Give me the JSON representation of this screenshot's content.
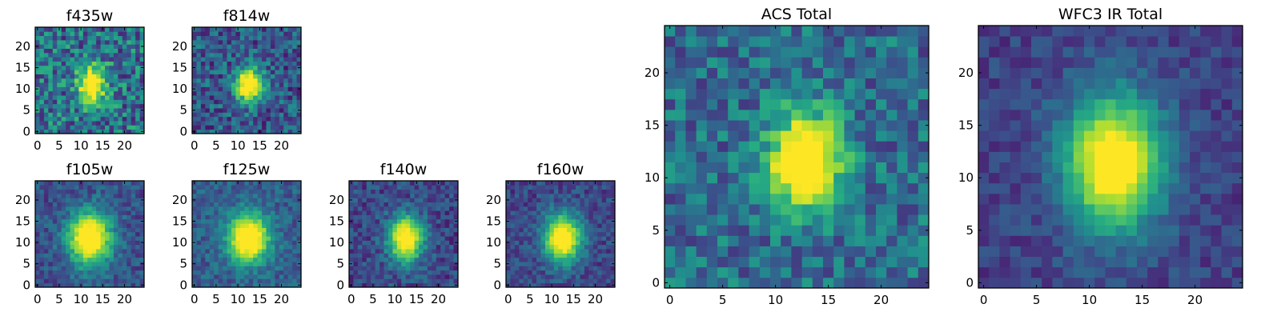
{
  "figure": {
    "type": "image-grid",
    "colormap": "viridis"
  },
  "chart_data": [
    {
      "type": "heatmap",
      "title": "f435w",
      "x_ticks": [
        "0",
        "5",
        "10",
        "15",
        "20"
      ],
      "y_ticks": [
        "0",
        "5",
        "10",
        "15",
        "20"
      ],
      "xlim": [
        0,
        24
      ],
      "ylim": [
        0,
        24
      ],
      "grid_size": 25,
      "source_center": [
        12.5,
        11.0
      ],
      "source_width": [
        2.2,
        3.0
      ],
      "peak": 0.85,
      "background": 0.38,
      "noise": 0.28
    },
    {
      "type": "heatmap",
      "title": "f814w",
      "x_ticks": [
        "0",
        "5",
        "10",
        "15",
        "20"
      ],
      "y_ticks": [
        "0",
        "5",
        "10",
        "15",
        "20"
      ],
      "xlim": [
        0,
        24
      ],
      "ylim": [
        0,
        24
      ],
      "grid_size": 25,
      "source_center": [
        12.5,
        11.0
      ],
      "source_width": [
        2.3,
        2.8
      ],
      "peak": 0.9,
      "background": 0.28,
      "noise": 0.22
    },
    {
      "type": "heatmap",
      "title": "f105w",
      "x_ticks": [
        "0",
        "5",
        "10",
        "15",
        "20"
      ],
      "y_ticks": [
        "0",
        "5",
        "10",
        "15",
        "20"
      ],
      "xlim": [
        0,
        24
      ],
      "ylim": [
        0,
        24
      ],
      "grid_size": 25,
      "source_center": [
        12.0,
        11.0
      ],
      "source_width": [
        3.5,
        4.5
      ],
      "peak": 0.95,
      "background": 0.25,
      "noise": 0.14
    },
    {
      "type": "heatmap",
      "title": "f125w",
      "x_ticks": [
        "0",
        "5",
        "10",
        "15",
        "20"
      ],
      "y_ticks": [
        "0",
        "5",
        "10",
        "15",
        "20"
      ],
      "xlim": [
        0,
        24
      ],
      "ylim": [
        0,
        24
      ],
      "grid_size": 25,
      "source_center": [
        12.5,
        11.0
      ],
      "source_width": [
        3.3,
        4.0
      ],
      "peak": 0.95,
      "background": 0.3,
      "noise": 0.13
    },
    {
      "type": "heatmap",
      "title": "f140w",
      "x_ticks": [
        "0",
        "5",
        "10",
        "15",
        "20"
      ],
      "y_ticks": [
        "0",
        "5",
        "10",
        "15",
        "20"
      ],
      "xlim": [
        0,
        24
      ],
      "ylim": [
        0,
        24
      ],
      "grid_size": 25,
      "source_center": [
        12.5,
        11.0
      ],
      "source_width": [
        2.8,
        3.8
      ],
      "peak": 0.95,
      "background": 0.22,
      "noise": 0.15
    },
    {
      "type": "heatmap",
      "title": "f160w",
      "x_ticks": [
        "0",
        "5",
        "10",
        "15",
        "20"
      ],
      "y_ticks": [
        "0",
        "5",
        "10",
        "15",
        "20"
      ],
      "xlim": [
        0,
        24
      ],
      "ylim": [
        0,
        24
      ],
      "grid_size": 25,
      "source_center": [
        12.5,
        11.0
      ],
      "source_width": [
        3.0,
        4.0
      ],
      "peak": 0.95,
      "background": 0.22,
      "noise": 0.13
    },
    {
      "type": "heatmap",
      "title": "ACS Total",
      "x_ticks": [
        "0",
        "5",
        "10",
        "15",
        "20"
      ],
      "y_ticks": [
        "0",
        "5",
        "10",
        "15",
        "20"
      ],
      "xlim": [
        0,
        24
      ],
      "ylim": [
        0,
        24
      ],
      "grid_size": 25,
      "source_center": [
        12.8,
        11.5
      ],
      "source_width": [
        2.4,
        3.2
      ],
      "peak": 0.95,
      "background": 0.36,
      "noise": 0.2
    },
    {
      "type": "heatmap",
      "title": "WFC3 IR Total",
      "x_ticks": [
        "0",
        "5",
        "10",
        "15",
        "20"
      ],
      "y_ticks": [
        "0",
        "5",
        "10",
        "15",
        "20"
      ],
      "xlim": [
        0,
        24
      ],
      "ylim": [
        0,
        24
      ],
      "grid_size": 25,
      "source_center": [
        12.3,
        11.5
      ],
      "source_width": [
        3.3,
        4.5
      ],
      "peak": 0.95,
      "background": 0.2,
      "noise": 0.1
    }
  ]
}
